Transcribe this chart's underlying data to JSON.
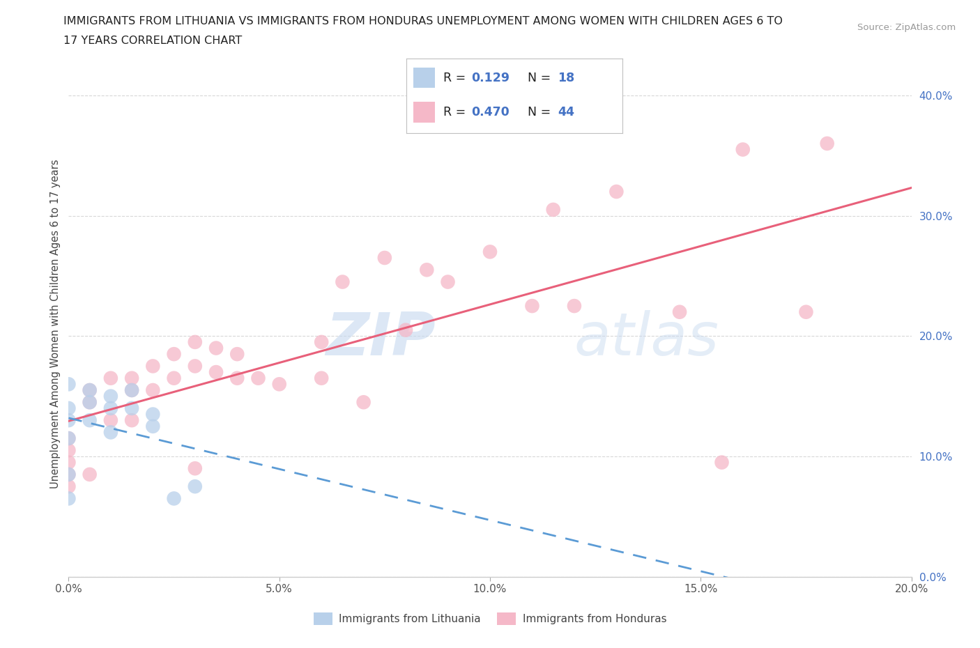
{
  "title_line1": "IMMIGRANTS FROM LITHUANIA VS IMMIGRANTS FROM HONDURAS UNEMPLOYMENT AMONG WOMEN WITH CHILDREN AGES 6 TO",
  "title_line2": "17 YEARS CORRELATION CHART",
  "source_text": "Source: ZipAtlas.com",
  "ylabel": "Unemployment Among Women with Children Ages 6 to 17 years",
  "xlim": [
    0.0,
    0.2
  ],
  "ylim": [
    0.0,
    0.42
  ],
  "x_ticks": [
    0.0,
    0.05,
    0.1,
    0.15,
    0.2
  ],
  "y_ticks": [
    0.0,
    0.1,
    0.2,
    0.3,
    0.4
  ],
  "background_color": "#ffffff",
  "grid_color": "#d8d8d8",
  "lithuania_color": "#b8d0ea",
  "honduras_color": "#f5b8c8",
  "lithuania_line_color": "#5b9bd5",
  "honduras_line_color": "#e8607a",
  "R_lithuania": 0.129,
  "N_lithuania": 18,
  "R_honduras": 0.47,
  "N_honduras": 44,
  "watermark_text": "ZIP",
  "watermark_text2": "atlas",
  "r_n_color": "#4472c4",
  "legend_border_color": "#c0c0c0",
  "tick_label_color": "#4472c4",
  "lithuania_x": [
    0.0,
    0.0,
    0.0,
    0.0,
    0.0,
    0.0,
    0.005,
    0.005,
    0.005,
    0.01,
    0.01,
    0.01,
    0.015,
    0.015,
    0.02,
    0.02,
    0.025,
    0.03
  ],
  "lithuania_y": [
    0.16,
    0.14,
    0.13,
    0.115,
    0.085,
    0.065,
    0.155,
    0.145,
    0.13,
    0.15,
    0.14,
    0.12,
    0.155,
    0.14,
    0.135,
    0.125,
    0.065,
    0.075
  ],
  "honduras_x": [
    0.0,
    0.0,
    0.0,
    0.0,
    0.0,
    0.005,
    0.005,
    0.005,
    0.01,
    0.01,
    0.015,
    0.015,
    0.015,
    0.02,
    0.02,
    0.025,
    0.025,
    0.03,
    0.03,
    0.03,
    0.035,
    0.035,
    0.04,
    0.04,
    0.045,
    0.05,
    0.06,
    0.06,
    0.065,
    0.07,
    0.075,
    0.08,
    0.085,
    0.09,
    0.1,
    0.11,
    0.115,
    0.12,
    0.13,
    0.145,
    0.155,
    0.16,
    0.175,
    0.18
  ],
  "honduras_y": [
    0.115,
    0.105,
    0.095,
    0.085,
    0.075,
    0.155,
    0.145,
    0.085,
    0.165,
    0.13,
    0.165,
    0.155,
    0.13,
    0.175,
    0.155,
    0.185,
    0.165,
    0.195,
    0.175,
    0.09,
    0.19,
    0.17,
    0.185,
    0.165,
    0.165,
    0.16,
    0.195,
    0.165,
    0.245,
    0.145,
    0.265,
    0.205,
    0.255,
    0.245,
    0.27,
    0.225,
    0.305,
    0.225,
    0.32,
    0.22,
    0.095,
    0.355,
    0.22,
    0.36
  ]
}
